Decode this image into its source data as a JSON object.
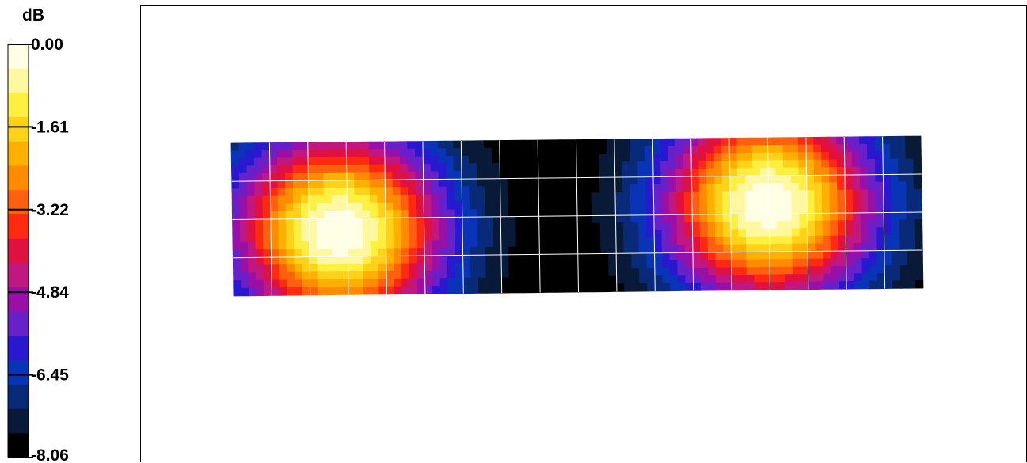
{
  "chart_data": {
    "type": "heatmap",
    "title": "",
    "colorbar": {
      "unit": "dB",
      "tick_labels": [
        "0.00",
        "-1.61",
        "-3.22",
        "-4.84",
        "-6.45",
        "-8.06"
      ],
      "min": -8.06,
      "max": 0.0,
      "colors": [
        "#ffffe6",
        "#fff8a0",
        "#ffef40",
        "#ffd21a",
        "#ffb000",
        "#ff8c00",
        "#ff6010",
        "#ff2a10",
        "#e01040",
        "#c01880",
        "#9810a8",
        "#6820c8",
        "#2818d0",
        "#0a34b8",
        "#082a78",
        "#081a38",
        "#000000"
      ]
    },
    "grid": {
      "rows": 4,
      "cols": 18
    },
    "sources": [
      {
        "col": 2.8,
        "row": 2.35,
        "level": 0.0
      },
      {
        "col": 14.0,
        "row": 1.75,
        "level": 0.0
      }
    ]
  }
}
